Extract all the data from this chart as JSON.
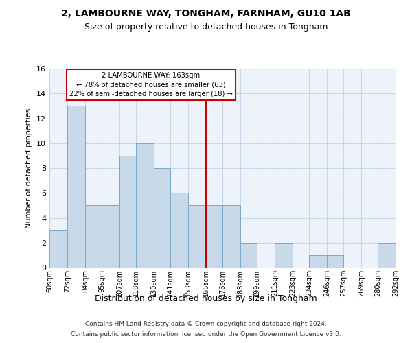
{
  "title1": "2, LAMBOURNE WAY, TONGHAM, FARNHAM, GU10 1AB",
  "title2": "Size of property relative to detached houses in Tongham",
  "xlabel": "Distribution of detached houses by size in Tongham",
  "ylabel": "Number of detached properties",
  "bar_color": "#c8d9ea",
  "bar_edge_color": "#7aaac8",
  "annotation_box_color": "#cc0000",
  "vline_color": "#cc0000",
  "annotation_line1": "2 LAMBOURNE WAY: 163sqm",
  "annotation_line2": "← 78% of detached houses are smaller (63)",
  "annotation_line3": "22% of semi-detached houses are larger (18) →",
  "footer1": "Contains HM Land Registry data © Crown copyright and database right 2024.",
  "footer2": "Contains public sector information licensed under the Open Government Licence v3.0.",
  "bins": [
    60,
    72,
    84,
    95,
    107,
    118,
    130,
    141,
    153,
    165,
    176,
    188,
    199,
    211,
    223,
    234,
    246,
    257,
    269,
    280,
    292
  ],
  "counts": [
    3,
    13,
    5,
    5,
    9,
    10,
    8,
    6,
    5,
    5,
    5,
    2,
    0,
    2,
    0,
    1,
    1,
    0,
    0,
    2
  ],
  "vline_x": 165,
  "ylim": [
    0,
    16
  ],
  "yticks": [
    0,
    2,
    4,
    6,
    8,
    10,
    12,
    14,
    16
  ],
  "tick_labels": [
    "60sqm",
    "72sqm",
    "84sqm",
    "95sqm",
    "107sqm",
    "118sqm",
    "130sqm",
    "141sqm",
    "153sqm",
    "165sqm",
    "176sqm",
    "188sqm",
    "199sqm",
    "211sqm",
    "223sqm",
    "234sqm",
    "246sqm",
    "257sqm",
    "269sqm",
    "280sqm",
    "292sqm"
  ],
  "grid_color": "#c8d8ec",
  "background_color": "#eef3fb"
}
